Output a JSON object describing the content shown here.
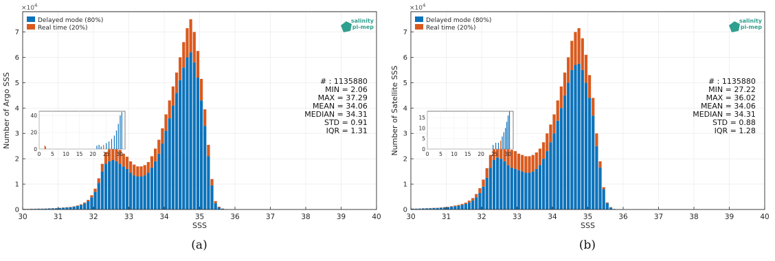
{
  "legend": {
    "delayed": "Delayed mode (80%)",
    "realtime": "Real time (20%)"
  },
  "logo": {
    "line1": "salinity",
    "line2": "pi-mep"
  },
  "colors": {
    "delayed": "#0c72ba",
    "realtime": "#d95a1e",
    "logo": "#2f9f8f"
  },
  "scale_label": "×10",
  "scale_exp": "4",
  "panels": [
    {
      "id": "a",
      "caption": "(a)",
      "stats": [
        "# : 1135880",
        "MIN = 2.06",
        "MAX =  37.29",
        "MEAN = 34.06",
        "MEDIAN = 34.31",
        "STD = 0.91",
        "IQR = 1.31"
      ]
    },
    {
      "id": "b",
      "caption": "(b)",
      "stats": [
        "# : 1135880",
        "MIN = 27.22",
        "MAX =  36.02",
        "MEAN = 34.06",
        "MEDIAN = 34.31",
        "STD = 0.88",
        "IQR = 1.28"
      ]
    }
  ],
  "chart_data": [
    {
      "type": "bar",
      "stacked": true,
      "xlabel": "SSS",
      "ylabel": "Number of Argo SSS",
      "xlim": [
        30,
        40
      ],
      "ylim": [
        0,
        78000
      ],
      "xticks": [
        30,
        31,
        32,
        33,
        34,
        35,
        36,
        37,
        38,
        39,
        40
      ],
      "yticks": [
        0,
        10000,
        20000,
        30000,
        40000,
        50000,
        60000,
        70000
      ],
      "ytick_labels": [
        "0",
        "1",
        "2",
        "3",
        "4",
        "5",
        "6",
        "7"
      ],
      "grid": true,
      "legend_position": "top-left",
      "x": [
        30.05,
        30.15,
        30.25,
        30.35,
        30.45,
        30.55,
        30.65,
        30.75,
        30.85,
        30.95,
        31.05,
        31.15,
        31.25,
        31.35,
        31.45,
        31.55,
        31.65,
        31.75,
        31.85,
        31.95,
        32.05,
        32.15,
        32.25,
        32.35,
        32.45,
        32.55,
        32.65,
        32.75,
        32.85,
        32.95,
        33.05,
        33.15,
        33.25,
        33.35,
        33.45,
        33.55,
        33.65,
        33.75,
        33.85,
        33.95,
        34.05,
        34.15,
        34.25,
        34.35,
        34.45,
        34.55,
        34.65,
        34.75,
        34.85,
        34.95,
        35.05,
        35.15,
        35.25,
        35.35,
        35.45,
        35.55,
        35.65,
        35.75,
        35.85,
        35.95
      ],
      "series": [
        {
          "name": "Delayed mode (80%)",
          "values": [
            200,
            200,
            250,
            250,
            300,
            300,
            350,
            400,
            450,
            500,
            600,
            700,
            800,
            900,
            1100,
            1400,
            1800,
            2400,
            3300,
            4800,
            7000,
            10500,
            15000,
            18000,
            19000,
            19500,
            19000,
            18000,
            17000,
            16000,
            14500,
            13500,
            13000,
            13000,
            13500,
            14500,
            16500,
            19000,
            22000,
            26000,
            31000,
            36000,
            41000,
            46000,
            51000,
            56000,
            60000,
            62000,
            58000,
            52000,
            43000,
            33000,
            21000,
            9500,
            2500,
            800,
            300,
            100,
            50,
            20
          ]
        },
        {
          "name": "Real time (20%)",
          "values": [
            50,
            50,
            50,
            50,
            50,
            50,
            60,
            60,
            70,
            70,
            80,
            90,
            100,
            120,
            150,
            200,
            250,
            350,
            500,
            800,
            1200,
            1800,
            3000,
            4500,
            5500,
            6000,
            6000,
            5500,
            5000,
            4800,
            4500,
            4200,
            4000,
            4000,
            4000,
            4200,
            4500,
            5000,
            5500,
            6000,
            6500,
            7000,
            7500,
            8000,
            9000,
            10000,
            11500,
            13000,
            12000,
            10500,
            8500,
            6500,
            4500,
            2500,
            800,
            300,
            100,
            50,
            20,
            10
          ]
        }
      ],
      "inset": {
        "xlim": [
          0,
          32
        ],
        "ylim": [
          0,
          45
        ],
        "xticks": [
          0,
          5,
          10,
          15,
          20,
          25,
          30
        ],
        "yticks": [
          0,
          20,
          40
        ]
      }
    },
    {
      "type": "bar",
      "stacked": true,
      "xlabel": "SSS",
      "ylabel": "Number of Satellite SSS",
      "xlim": [
        30,
        40
      ],
      "ylim": [
        0,
        78000
      ],
      "xticks": [
        30,
        31,
        32,
        33,
        34,
        35,
        36,
        37,
        38,
        39,
        40
      ],
      "yticks": [
        0,
        10000,
        20000,
        30000,
        40000,
        50000,
        60000,
        70000
      ],
      "ytick_labels": [
        "0",
        "1",
        "2",
        "3",
        "4",
        "5",
        "6",
        "7"
      ],
      "grid": true,
      "legend_position": "top-left",
      "x": [
        30.05,
        30.15,
        30.25,
        30.35,
        30.45,
        30.55,
        30.65,
        30.75,
        30.85,
        30.95,
        31.05,
        31.15,
        31.25,
        31.35,
        31.45,
        31.55,
        31.65,
        31.75,
        31.85,
        31.95,
        32.05,
        32.15,
        32.25,
        32.35,
        32.45,
        32.55,
        32.65,
        32.75,
        32.85,
        32.95,
        33.05,
        33.15,
        33.25,
        33.35,
        33.45,
        33.55,
        33.65,
        33.75,
        33.85,
        33.95,
        34.05,
        34.15,
        34.25,
        34.35,
        34.45,
        34.55,
        34.65,
        34.75,
        34.85,
        34.95,
        35.05,
        35.15,
        35.25,
        35.35,
        35.45,
        35.55,
        35.65,
        35.75,
        35.85,
        35.95
      ],
      "series": [
        {
          "name": "Delayed mode (80%)",
          "values": [
            300,
            300,
            350,
            400,
            450,
            500,
            550,
            600,
            700,
            800,
            900,
            1100,
            1300,
            1500,
            1800,
            2200,
            2800,
            3600,
            4800,
            6500,
            9000,
            12500,
            16500,
            19500,
            20500,
            20000,
            19000,
            17500,
            16500,
            16000,
            15500,
            15000,
            14500,
            14500,
            15000,
            16000,
            17500,
            20000,
            23000,
            26500,
            30000,
            35000,
            40000,
            45000,
            50000,
            55000,
            57000,
            57500,
            55000,
            50000,
            44000,
            37000,
            25000,
            16500,
            8000,
            2500,
            800,
            200,
            50,
            20
          ]
        },
        {
          "name": "Real time (20%)",
          "values": [
            50,
            50,
            60,
            60,
            70,
            70,
            80,
            90,
            100,
            120,
            150,
            200,
            250,
            300,
            400,
            500,
            700,
            900,
            1300,
            1900,
            2800,
            3800,
            5000,
            6000,
            6500,
            7000,
            7000,
            7000,
            7000,
            7000,
            6500,
            6500,
            6500,
            6500,
            6500,
            6500,
            6500,
            6500,
            7000,
            7000,
            7500,
            8000,
            8500,
            9000,
            10000,
            11500,
            13000,
            14000,
            12500,
            11000,
            9000,
            7000,
            5000,
            2500,
            800,
            300,
            100,
            30,
            10,
            5
          ]
        }
      ],
      "inset": {
        "xlim": [
          0,
          32
        ],
        "ylim": [
          0,
          18
        ],
        "xticks": [
          0,
          5,
          10,
          15,
          20,
          25,
          30
        ],
        "yticks": [
          0,
          5,
          10,
          15
        ]
      }
    }
  ]
}
